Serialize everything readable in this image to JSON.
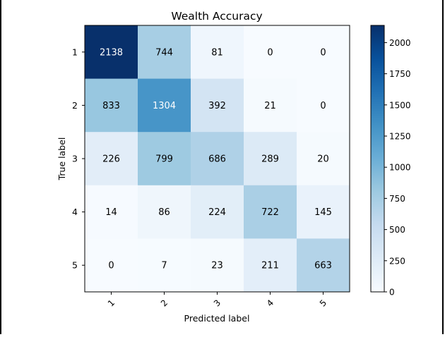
{
  "chart_data": {
    "type": "heatmap",
    "title": "Wealth Accuracy",
    "xlabel": "Predicted label",
    "ylabel": "True label",
    "x_tick_labels": [
      "1",
      "2",
      "3",
      "4",
      "5"
    ],
    "y_tick_labels": [
      "1",
      "2",
      "3",
      "4",
      "5"
    ],
    "matrix": [
      [
        2138,
        744,
        81,
        0,
        0
      ],
      [
        833,
        1304,
        392,
        21,
        0
      ],
      [
        226,
        799,
        686,
        289,
        20
      ],
      [
        14,
        86,
        224,
        722,
        145
      ],
      [
        0,
        7,
        23,
        211,
        663
      ]
    ],
    "colormap": "Blues",
    "vmin": 0,
    "vmax": 2138,
    "colorbar_ticks": [
      0,
      250,
      500,
      750,
      1000,
      1250,
      1500,
      1750,
      2000
    ],
    "cmap_stops": [
      "#f7fbff",
      "#deebf7",
      "#c6dbef",
      "#9ecae1",
      "#6baed6",
      "#4292c6",
      "#2171b5",
      "#08519c",
      "#08306b"
    ]
  }
}
